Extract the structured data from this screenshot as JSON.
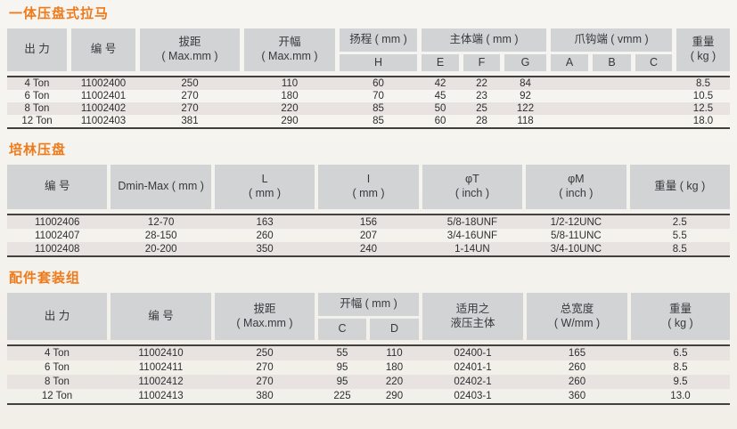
{
  "colors": {
    "accent_orange": "#ee7a1b",
    "header_cell_gray": "#d2d3d5",
    "row_stripe": "#e8e3e0",
    "rule_dark": "#43413e",
    "paper": "#f5f3ee"
  },
  "t1": {
    "title": "一体压盘式拉马",
    "head": {
      "output": "出 力",
      "partno": "编 号",
      "pull_1": "拔距",
      "pull_2": "( Max.mm )",
      "spread_1": "开幅",
      "spread_2": "( Max.mm )",
      "lift": "扬程 ( mm )",
      "lift_sub": "H",
      "body_end": "主体端 ( mm )",
      "e": "E",
      "f": "F",
      "g": "G",
      "claw_end": "爪钩端 ( vmm )",
      "a": "A",
      "b": "B",
      "c": "C",
      "weight_1": "重量",
      "weight_2": "( kg )"
    },
    "rows": [
      [
        "4 Ton",
        "11002400",
        "250",
        "110",
        "60",
        "42",
        "22",
        "84",
        "",
        "",
        "",
        "8.5"
      ],
      [
        "6 Ton",
        "11002401",
        "270",
        "180",
        "70",
        "45",
        "23",
        "92",
        "",
        "",
        "",
        "10.5"
      ],
      [
        "8 Ton",
        "11002402",
        "270",
        "220",
        "85",
        "50",
        "25",
        "122",
        "",
        "",
        "",
        "12.5"
      ],
      [
        "12 Ton",
        "11002403",
        "381",
        "290",
        "85",
        "60",
        "28",
        "118",
        "",
        "",
        "",
        "18.0"
      ]
    ]
  },
  "t2": {
    "title": "培林压盘",
    "head": {
      "partno": "编 号",
      "dminmax": "Dmin-Max ( mm )",
      "l_1": "L",
      "l_2": "( mm )",
      "i_1": "I",
      "i_2": "( mm )",
      "phit_1": "φT",
      "phit_2": "( inch )",
      "phim_1": "φM",
      "phim_2": "( inch )",
      "weight": "重量 ( kg )"
    },
    "rows": [
      [
        "11002406",
        "12-70",
        "163",
        "156",
        "5/8-18UNF",
        "1/2-12UNC",
        "2.5"
      ],
      [
        "11002407",
        "28-150",
        "260",
        "207",
        "3/4-16UNF",
        "5/8-11UNC",
        "5.5"
      ],
      [
        "11002408",
        "20-200",
        "350",
        "240",
        "1-14UN",
        "3/4-10UNC",
        "8.5"
      ]
    ]
  },
  "t3": {
    "title": "配件套装组",
    "head": {
      "output": "出 力",
      "partno": "编 号",
      "pull_1": "拔距",
      "pull_2": "( Max.mm )",
      "spread": "开幅 ( mm )",
      "c": "C",
      "d": "D",
      "apply_1": "适用之",
      "apply_2": "液压主体",
      "width_1": "总宽度",
      "width_2": "( W/mm )",
      "weight_1": "重量",
      "weight_2": "( kg )"
    },
    "rows": [
      [
        "4 Ton",
        "11002410",
        "250",
        "55",
        "110",
        "02400-1",
        "165",
        "6.5"
      ],
      [
        "6 Ton",
        "11002411",
        "270",
        "95",
        "180",
        "02401-1",
        "260",
        "8.5"
      ],
      [
        "8 Ton",
        "11002412",
        "270",
        "95",
        "220",
        "02402-1",
        "260",
        "9.5"
      ],
      [
        "12 Ton",
        "11002413",
        "380",
        "225",
        "290",
        "02403-1",
        "360",
        "13.0"
      ]
    ]
  }
}
